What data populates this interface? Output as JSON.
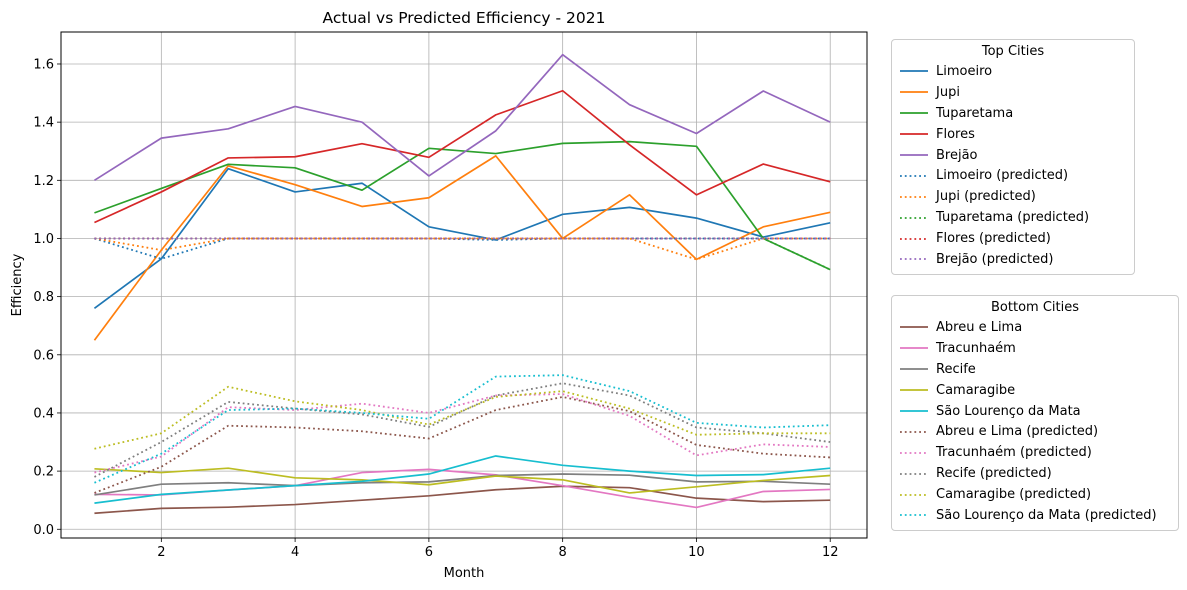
{
  "chart_data": {
    "type": "line",
    "title": "Actual vs Predicted Efficiency - 2021",
    "xlabel": "Month",
    "ylabel": "Efficiency",
    "xlim": [
      0.5,
      12.55
    ],
    "ylim": [
      -0.03,
      1.71
    ],
    "xticks": [
      2,
      4,
      6,
      8,
      10,
      12
    ],
    "yticks": [
      0.0,
      0.2,
      0.4,
      0.6,
      0.8,
      1.0,
      1.2,
      1.4,
      1.6
    ],
    "grid": true,
    "x": [
      1,
      2,
      3,
      4,
      5,
      6,
      7,
      8,
      9,
      10,
      11,
      12
    ],
    "legends": [
      {
        "title": "Top Cities",
        "placement": "outside-right-top"
      },
      {
        "title": "Bottom Cities",
        "placement": "outside-right-bottom"
      }
    ],
    "series": [
      {
        "name": "Limoeiro",
        "group": 0,
        "style": "solid",
        "color": "#1f77b4",
        "values": [
          0.76,
          0.93,
          1.24,
          1.16,
          1.19,
          1.04,
          0.995,
          1.083,
          1.107,
          1.07,
          1.005,
          1.054
        ]
      },
      {
        "name": "Jupi",
        "group": 0,
        "style": "solid",
        "color": "#ff7f0e",
        "values": [
          0.65,
          0.96,
          1.25,
          1.185,
          1.11,
          1.14,
          1.284,
          1.0,
          1.15,
          0.928,
          1.04,
          1.09
        ]
      },
      {
        "name": "Tuparetama",
        "group": 0,
        "style": "solid",
        "color": "#2ca02c",
        "values": [
          1.088,
          1.172,
          1.255,
          1.243,
          1.166,
          1.31,
          1.292,
          1.327,
          1.333,
          1.317,
          1.0,
          0.893
        ]
      },
      {
        "name": "Flores",
        "group": 0,
        "style": "solid",
        "color": "#d62728",
        "values": [
          1.055,
          1.16,
          1.277,
          1.281,
          1.326,
          1.279,
          1.425,
          1.508,
          1.322,
          1.15,
          1.256,
          1.195
        ]
      },
      {
        "name": "Brejão",
        "group": 0,
        "style": "solid",
        "color": "#9467bd",
        "values": [
          1.2,
          1.345,
          1.377,
          1.454,
          1.4,
          1.215,
          1.37,
          1.632,
          1.46,
          1.361,
          1.507,
          1.4
        ]
      },
      {
        "name": "Limoeiro (predicted)",
        "group": 0,
        "style": "dotted",
        "color": "#1f77b4",
        "values": [
          1.0,
          0.93,
          1.0,
          1.0,
          1.0,
          1.0,
          0.995,
          1.0,
          1.0,
          1.0,
          1.0,
          1.0
        ]
      },
      {
        "name": "Jupi (predicted)",
        "group": 0,
        "style": "dotted",
        "color": "#ff7f0e",
        "values": [
          1.0,
          0.96,
          1.0,
          1.0,
          1.0,
          1.0,
          1.0,
          1.0,
          1.0,
          0.928,
          1.0,
          1.0
        ]
      },
      {
        "name": "Tuparetama (predicted)",
        "group": 0,
        "style": "dotted",
        "color": "#2ca02c",
        "values": [
          1.0,
          1.0,
          1.0,
          1.0,
          1.0,
          1.0,
          1.0,
          1.0,
          1.0,
          1.0,
          1.0,
          0.893
        ]
      },
      {
        "name": "Flores (predicted)",
        "group": 0,
        "style": "dotted",
        "color": "#d62728",
        "values": [
          1.0,
          1.0,
          1.0,
          1.0,
          1.0,
          1.0,
          1.0,
          1.0,
          1.0,
          1.0,
          1.0,
          1.0
        ]
      },
      {
        "name": "Brejão (predicted)",
        "group": 0,
        "style": "dotted",
        "color": "#9467bd",
        "values": [
          1.0,
          1.0,
          1.0,
          1.0,
          1.0,
          1.0,
          1.0,
          1.0,
          1.0,
          1.0,
          1.0,
          1.0
        ]
      },
      {
        "name": "Abreu e Lima",
        "group": 1,
        "style": "solid",
        "color": "#8c564b",
        "values": [
          0.055,
          0.072,
          0.076,
          0.085,
          0.1,
          0.115,
          0.136,
          0.148,
          0.143,
          0.107,
          0.095,
          0.1
        ]
      },
      {
        "name": "Tracunhaém",
        "group": 1,
        "style": "solid",
        "color": "#e377c2",
        "values": [
          0.12,
          0.118,
          0.135,
          0.15,
          0.195,
          0.206,
          0.187,
          0.15,
          0.11,
          0.075,
          0.13,
          0.137
        ]
      },
      {
        "name": "Recife",
        "group": 1,
        "style": "solid",
        "color": "#7f7f7f",
        "values": [
          0.118,
          0.155,
          0.16,
          0.15,
          0.16,
          0.163,
          0.185,
          0.19,
          0.186,
          0.163,
          0.165,
          0.155
        ]
      },
      {
        "name": "Camaragibe",
        "group": 1,
        "style": "solid",
        "color": "#bcbd22",
        "values": [
          0.208,
          0.195,
          0.21,
          0.177,
          0.17,
          0.153,
          0.183,
          0.17,
          0.125,
          0.146,
          0.168,
          0.185
        ]
      },
      {
        "name": "São Lourenço da Mata",
        "group": 1,
        "style": "solid",
        "color": "#17becf",
        "values": [
          0.09,
          0.12,
          0.135,
          0.15,
          0.165,
          0.19,
          0.252,
          0.22,
          0.2,
          0.185,
          0.188,
          0.21
        ]
      },
      {
        "name": "Abreu e Lima (predicted)",
        "group": 1,
        "style": "dotted",
        "color": "#8c564b",
        "values": [
          0.125,
          0.215,
          0.356,
          0.35,
          0.337,
          0.312,
          0.41,
          0.455,
          0.406,
          0.29,
          0.26,
          0.247
        ]
      },
      {
        "name": "Tracunhaém (predicted)",
        "group": 1,
        "style": "dotted",
        "color": "#e377c2",
        "values": [
          0.195,
          0.25,
          0.42,
          0.41,
          0.432,
          0.4,
          0.46,
          0.465,
          0.39,
          0.254,
          0.292,
          0.283
        ]
      },
      {
        "name": "Recife (predicted)",
        "group": 1,
        "style": "dotted",
        "color": "#7f7f7f",
        "values": [
          0.18,
          0.3,
          0.438,
          0.415,
          0.395,
          0.352,
          0.46,
          0.502,
          0.46,
          0.35,
          0.33,
          0.3
        ]
      },
      {
        "name": "Camaragibe (predicted)",
        "group": 1,
        "style": "dotted",
        "color": "#bcbd22",
        "values": [
          0.277,
          0.33,
          0.49,
          0.44,
          0.41,
          0.36,
          0.455,
          0.475,
          0.415,
          0.325,
          0.33,
          0.33
        ]
      },
      {
        "name": "São Lourenço da Mata (predicted)",
        "group": 1,
        "style": "dotted",
        "color": "#17becf",
        "values": [
          0.16,
          0.26,
          0.41,
          0.415,
          0.4,
          0.38,
          0.525,
          0.53,
          0.475,
          0.366,
          0.35,
          0.358
        ]
      }
    ]
  }
}
